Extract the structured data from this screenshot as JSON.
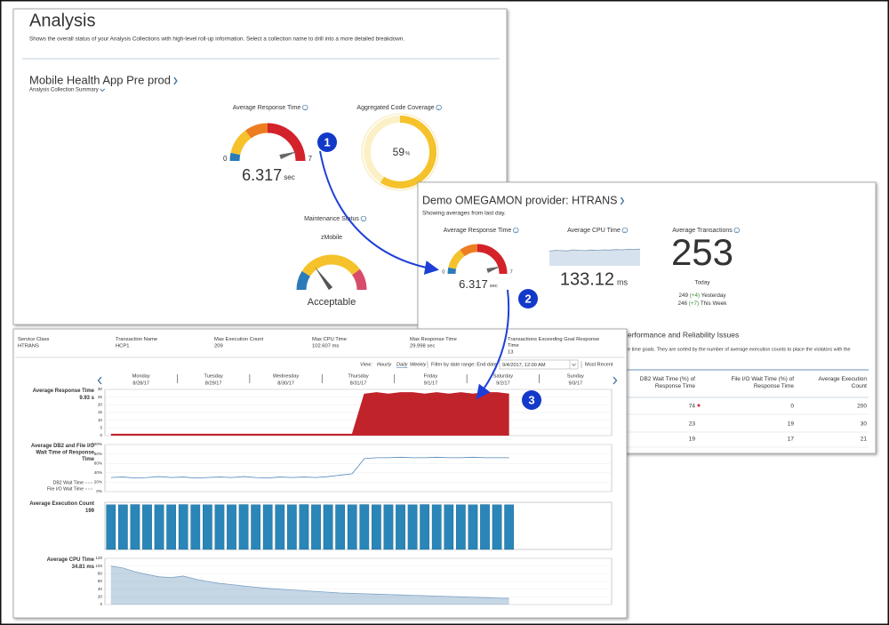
{
  "analysis": {
    "title": "Analysis",
    "description": "Shows the overall status of your Analysis Collections with high-level roll-up information. Select a collection name to drill into a more detailed breakdown.",
    "collection": "Mobile Health App Pre prod",
    "collection_summary": "Analysis Collection Summary",
    "response_time": {
      "label": "Average Response Time",
      "min": 0,
      "max": 7,
      "value": 6.317,
      "unit": "sec"
    },
    "code_coverage": {
      "label": "Aggregated Code Coverage",
      "value": 59,
      "unit": "%"
    },
    "maintenance": {
      "label": "Maintenance Status",
      "name": "zMobile",
      "status": "Acceptable"
    }
  },
  "provider": {
    "title": "Demo OMEGAMON provider: HTRANS",
    "subtitle": "Showing averages from last day.",
    "response_time": {
      "label": "Average Response Time",
      "min": 0,
      "max": 7,
      "value": 6.317,
      "unit": "sec"
    },
    "cpu_time": {
      "label": "Average CPU Time",
      "value": 133.12,
      "unit": "ms",
      "ylim": [
        0,
        100
      ],
      "sparkline": [
        55,
        58,
        57,
        56,
        60,
        58,
        57,
        59,
        58,
        60,
        59,
        61,
        60,
        62,
        61,
        63
      ]
    },
    "transactions": {
      "label": "Average Transactions",
      "value": 253,
      "period": "Today",
      "history": [
        {
          "value": 249,
          "change": "(+4)",
          "period": "Yesterday"
        },
        {
          "value": 246,
          "change": "(+7)",
          "period": "This Week"
        }
      ]
    },
    "issues_title": "erformance and Reliability Issues",
    "issues_note": "e time goals. They are sorted by the number of average execution counts to place the violators with the",
    "table": {
      "columns": [
        "DB2 Wait Time (%) of Response Time",
        "File I/O Wait Time (%) of Response Time",
        "Average Execution Count"
      ],
      "rows": [
        [
          74,
          0,
          200
        ],
        [
          23,
          19,
          30
        ],
        [
          19,
          17,
          21
        ]
      ]
    }
  },
  "detail": {
    "summary": [
      {
        "label": "Service Class",
        "value": "HTRANS"
      },
      {
        "label": "Transaction Name",
        "value": "HCP1"
      },
      {
        "label": "Max Execution Count",
        "value": 209
      },
      {
        "label": "Max CPU Time",
        "value": "102.607 ms"
      },
      {
        "label": "Max Response Time",
        "value": "29.998 sec"
      },
      {
        "label": "Transactions Exceeding Goal Response Time",
        "value": 13
      }
    ],
    "view_label": "View:",
    "views": [
      "Hourly",
      "Daily",
      "Weekly"
    ],
    "filter_label": "Filter by date range: End date",
    "end_date": "9/4/2017, 12:00 AM",
    "most_recent": "Most Recent",
    "days": [
      {
        "name": "Monday",
        "date": "8/28/17"
      },
      {
        "name": "Tuesday",
        "date": "8/29/17"
      },
      {
        "name": "Wednesday",
        "date": "8/30/17"
      },
      {
        "name": "Thursday",
        "date": "8/31/17"
      },
      {
        "name": "Friday",
        "date": "9/1/17"
      },
      {
        "name": "Saturday",
        "date": "9/2/17"
      },
      {
        "name": "Sunday",
        "date": "9/3/17"
      }
    ],
    "charts": [
      {
        "type": "area",
        "title": "Average Response Time",
        "current": "9.93 s",
        "color": "#c1232b",
        "grid": true,
        "ylim": [
          0,
          30
        ],
        "yticks": [
          0,
          5,
          10,
          15,
          20,
          25,
          30
        ],
        "values": [
          1,
          1,
          1,
          1,
          1,
          1,
          1,
          1,
          1,
          1,
          1,
          1,
          1,
          1,
          1,
          1,
          1,
          1,
          1,
          1,
          1,
          27,
          28,
          27,
          28,
          28,
          27,
          28,
          27,
          28,
          27,
          28,
          28,
          27,
          null,
          null,
          null,
          null,
          null,
          null,
          null,
          null
        ]
      },
      {
        "type": "line",
        "title": "Average DB2 and File I/O Wait Time of Response Time",
        "color": "#4f86bb",
        "grid": true,
        "legend": [
          "DB2 Wait Time",
          "File I/O Wait Time"
        ],
        "ylim": [
          0,
          100
        ],
        "yticks": [
          {
            "value": 0,
            "label": "0%"
          },
          {
            "value": 20,
            "label": "20%"
          },
          {
            "value": 40,
            "label": "40%"
          },
          {
            "value": 60,
            "label": "60%"
          },
          {
            "value": 80,
            "label": "80%"
          },
          {
            "value": 100,
            "label": "100%"
          }
        ],
        "values": [
          30,
          31,
          29,
          30,
          32,
          30,
          31,
          29,
          30,
          31,
          30,
          32,
          30,
          29,
          31,
          30,
          31,
          30,
          32,
          35,
          38,
          70,
          72,
          72,
          73,
          72,
          72,
          73,
          72,
          72,
          73,
          72,
          72,
          72,
          null,
          null,
          null,
          null,
          null,
          null,
          null,
          null
        ]
      },
      {
        "type": "bar",
        "title": "Average Execution Count",
        "current": 199,
        "color": "#2a86b8",
        "grid": false,
        "ylim": [
          0,
          210
        ],
        "values": [
          199,
          199,
          200,
          199,
          199,
          199,
          200,
          199,
          199,
          199,
          199,
          200,
          199,
          199,
          199,
          199,
          200,
          199,
          199,
          199,
          199,
          200,
          199,
          199,
          199,
          199,
          200,
          199,
          199,
          199,
          199,
          200,
          199,
          199,
          null,
          null,
          null,
          null,
          null,
          null,
          null,
          null
        ]
      },
      {
        "type": "area",
        "title": "Average CPU Time",
        "current": "34.81 ms",
        "color": "#7ea3c6",
        "grid": true,
        "ylim": [
          0,
          120
        ],
        "yticks": [
          0,
          20,
          40,
          60,
          80,
          100,
          120
        ],
        "values": [
          100,
          95,
          85,
          78,
          72,
          70,
          74,
          66,
          60,
          55,
          52,
          48,
          45,
          42,
          40,
          38,
          36,
          34,
          32,
          30,
          29,
          28,
          27,
          26,
          25,
          24,
          23,
          22,
          21,
          20,
          19,
          18,
          17,
          16,
          null,
          null,
          null,
          null,
          null,
          null,
          null,
          null
        ]
      }
    ]
  },
  "callouts": [
    "1",
    "2",
    "3"
  ]
}
